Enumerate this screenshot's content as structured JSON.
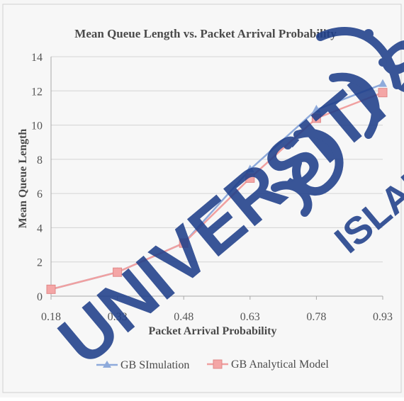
{
  "chart_data": {
    "type": "line",
    "title": "Mean Queue Length vs. Packet Arrival Probability",
    "xlabel": "Packet Arrival Probability",
    "ylabel": "Mean Queue Length",
    "categories": [
      "0.18",
      "0.33",
      "0.48",
      "0.63",
      "0.78",
      "0.93"
    ],
    "ylim": [
      0,
      14
    ],
    "yticks": [
      0,
      2,
      4,
      6,
      8,
      10,
      12,
      14
    ],
    "grid": true,
    "legend_position": "bottom",
    "series": [
      {
        "name": "GB SImulation",
        "values": [
          0.4,
          1.4,
          3.1,
          7.4,
          10.9,
          12.4
        ],
        "color": "#8eaadb",
        "marker": "triangle"
      },
      {
        "name": "GB Analytical Model",
        "values": [
          0.4,
          1.4,
          3.1,
          6.9,
          10.4,
          11.9
        ],
        "color": "#f0a0a0",
        "marker": "square"
      }
    ]
  },
  "watermark": {
    "main": "UNIVERSITI SA",
    "secondary": "ISLAM",
    "color": "#1f3f8a"
  }
}
